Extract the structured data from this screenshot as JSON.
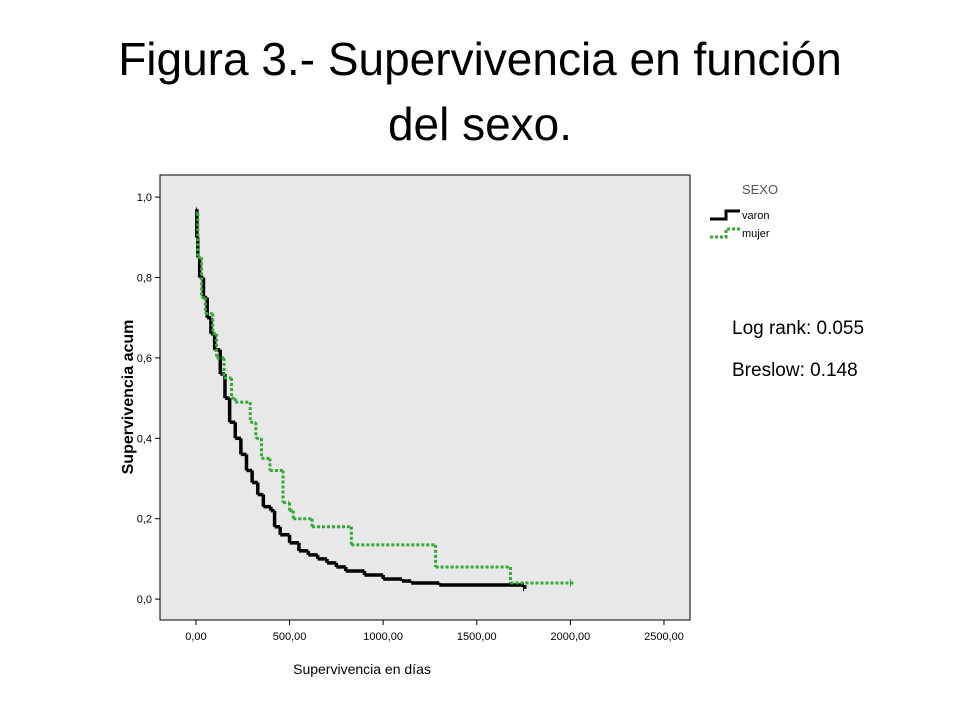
{
  "chart_data": {
    "type": "step",
    "title": "Figura 3.- Supervivencia en función del sexo.",
    "x_label": "Supervivencia en días",
    "y_label": "Supervivencia acum",
    "legend_title": "SEXO",
    "legend": "upper right",
    "annotations": [
      "Log rank: 0.055",
      "Breslow: 0.148"
    ],
    "series": [
      {
        "name": "varon",
        "color": "#000000",
        "dash": false,
        "x": [
          0,
          5,
          10,
          20,
          40,
          60,
          80,
          100,
          130,
          155,
          180,
          210,
          240,
          270,
          300,
          330,
          360,
          400,
          420,
          450,
          500,
          550,
          600,
          650,
          700,
          750,
          800,
          900,
          1000,
          1100,
          1150,
          1300,
          1750
        ],
        "values": [
          0.97,
          0.9,
          0.85,
          0.8,
          0.75,
          0.7,
          0.66,
          0.62,
          0.56,
          0.5,
          0.44,
          0.4,
          0.36,
          0.32,
          0.29,
          0.26,
          0.23,
          0.22,
          0.18,
          0.16,
          0.14,
          0.12,
          0.11,
          0.1,
          0.09,
          0.08,
          0.07,
          0.06,
          0.05,
          0.045,
          0.04,
          0.035,
          0.03
        ]
      },
      {
        "name": "mujer",
        "color": "#33aa33",
        "dash": true,
        "x": [
          0,
          10,
          30,
          50,
          90,
          110,
          150,
          190,
          210,
          290,
          320,
          350,
          395,
          465,
          500,
          520,
          620,
          830,
          1280,
          1680,
          2000
        ],
        "values": [
          0.96,
          0.85,
          0.75,
          0.71,
          0.66,
          0.6,
          0.55,
          0.5,
          0.49,
          0.44,
          0.4,
          0.35,
          0.32,
          0.24,
          0.22,
          0.2,
          0.18,
          0.135,
          0.08,
          0.04,
          0.04
        ]
      }
    ],
    "xlim": [
      -192,
      2639
    ],
    "ylim": [
      -0.052,
      1.055
    ],
    "xticks": [
      {
        "value": 0,
        "label": "0,00"
      },
      {
        "value": 500,
        "label": "500,00"
      },
      {
        "value": 1000,
        "label": "1000,00"
      },
      {
        "value": 1500,
        "label": "1500,00"
      },
      {
        "value": 2000,
        "label": "2000,00"
      },
      {
        "value": 2500,
        "label": "2500,00"
      }
    ],
    "yticks": [
      {
        "value": 0,
        "label": "0,0"
      },
      {
        "value": 0.2,
        "label": "0,2"
      },
      {
        "value": 0.4,
        "label": "0,4"
      },
      {
        "value": 0.6,
        "label": "0,6"
      },
      {
        "value": 0.8,
        "label": "0,8"
      },
      {
        "value": 1.0,
        "label": "1,0"
      }
    ],
    "plot_background": "#e8e8e8"
  }
}
